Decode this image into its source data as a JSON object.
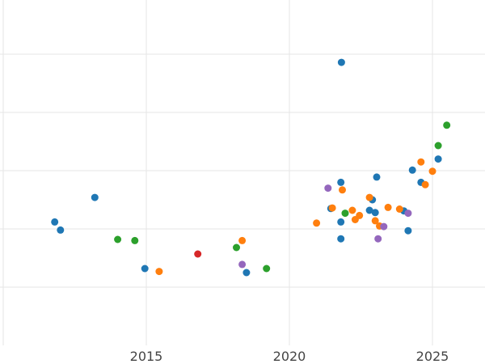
{
  "chart_data": {
    "type": "scatter",
    "title": "",
    "xlabel": "",
    "ylabel": "",
    "xlim": [
      2010.0,
      2026.8
    ],
    "ylim": [
      0,
      600
    ],
    "grid": true,
    "x_ticks": [
      2015,
      2020,
      2025
    ],
    "x_tick_labels": [
      "2015",
      "2020",
      "2025"
    ],
    "colors": {
      "blue": "#1f77b4",
      "orange": "#ff7f0e",
      "green": "#2ca02c",
      "red": "#d62728",
      "purple": "#9467bd"
    },
    "series": [
      {
        "color": "blue",
        "points": [
          {
            "x": 2011.8,
            "y": 212
          },
          {
            "x": 2012.0,
            "y": 198
          },
          {
            "x": 2013.2,
            "y": 254
          },
          {
            "x": 2014.95,
            "y": 132
          },
          {
            "x": 2018.5,
            "y": 125
          },
          {
            "x": 2021.45,
            "y": 235
          },
          {
            "x": 2021.8,
            "y": 280
          },
          {
            "x": 2021.8,
            "y": 212
          },
          {
            "x": 2021.8,
            "y": 183
          },
          {
            "x": 2021.82,
            "y": 486
          },
          {
            "x": 2022.8,
            "y": 232
          },
          {
            "x": 2022.9,
            "y": 250
          },
          {
            "x": 2023.0,
            "y": 228
          },
          {
            "x": 2023.05,
            "y": 289
          },
          {
            "x": 2024.0,
            "y": 231
          },
          {
            "x": 2024.15,
            "y": 197
          },
          {
            "x": 2024.3,
            "y": 301
          },
          {
            "x": 2024.6,
            "y": 280
          },
          {
            "x": 2025.2,
            "y": 320
          }
        ]
      },
      {
        "color": "orange",
        "points": [
          {
            "x": 2015.45,
            "y": 127
          },
          {
            "x": 2018.35,
            "y": 180
          },
          {
            "x": 2020.95,
            "y": 210
          },
          {
            "x": 2021.5,
            "y": 236
          },
          {
            "x": 2021.85,
            "y": 267
          },
          {
            "x": 2022.2,
            "y": 232
          },
          {
            "x": 2022.3,
            "y": 216
          },
          {
            "x": 2022.45,
            "y": 223
          },
          {
            "x": 2022.8,
            "y": 254
          },
          {
            "x": 2023.0,
            "y": 214
          },
          {
            "x": 2023.15,
            "y": 205
          },
          {
            "x": 2023.45,
            "y": 237
          },
          {
            "x": 2023.85,
            "y": 234
          },
          {
            "x": 2024.6,
            "y": 315
          },
          {
            "x": 2024.75,
            "y": 276
          },
          {
            "x": 2025.0,
            "y": 299
          }
        ]
      },
      {
        "color": "green",
        "points": [
          {
            "x": 2014.0,
            "y": 182
          },
          {
            "x": 2014.6,
            "y": 180
          },
          {
            "x": 2018.15,
            "y": 168
          },
          {
            "x": 2019.2,
            "y": 132
          },
          {
            "x": 2021.95,
            "y": 227
          },
          {
            "x": 2025.2,
            "y": 343
          },
          {
            "x": 2025.5,
            "y": 378
          }
        ]
      },
      {
        "color": "red",
        "points": [
          {
            "x": 2016.8,
            "y": 157
          }
        ]
      },
      {
        "color": "purple",
        "points": [
          {
            "x": 2018.35,
            "y": 139
          },
          {
            "x": 2021.35,
            "y": 270
          },
          {
            "x": 2023.1,
            "y": 183
          },
          {
            "x": 2023.3,
            "y": 204
          },
          {
            "x": 2024.15,
            "y": 227
          }
        ]
      }
    ]
  }
}
